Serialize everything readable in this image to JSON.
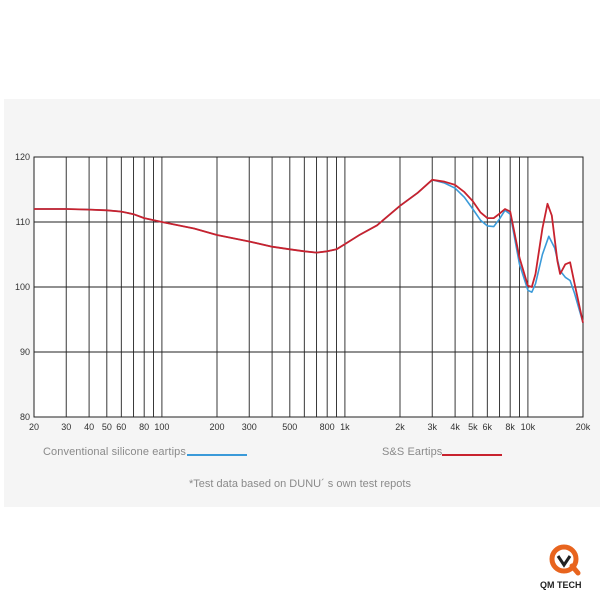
{
  "chart_data": {
    "type": "line",
    "x_scale": "log",
    "xlim": [
      20,
      20000
    ],
    "ylim": [
      80,
      120
    ],
    "grid": true,
    "x_tick_labels": [
      {
        "v": 20,
        "label": "20"
      },
      {
        "v": 30,
        "label": "30"
      },
      {
        "v": 40,
        "label": "40"
      },
      {
        "v": 50,
        "label": "50"
      },
      {
        "v": 60,
        "label": "60"
      },
      {
        "v": 80,
        "label": "80"
      },
      {
        "v": 100,
        "label": "100"
      },
      {
        "v": 200,
        "label": "200"
      },
      {
        "v": 300,
        "label": "300"
      },
      {
        "v": 500,
        "label": "500"
      },
      {
        "v": 800,
        "label": "800"
      },
      {
        "v": 1000,
        "label": "1k"
      },
      {
        "v": 2000,
        "label": "2k"
      },
      {
        "v": 3000,
        "label": "3k"
      },
      {
        "v": 4000,
        "label": "4k"
      },
      {
        "v": 5000,
        "label": "5k"
      },
      {
        "v": 6000,
        "label": "6k"
      },
      {
        "v": 8000,
        "label": "8k"
      },
      {
        "v": 10000,
        "label": "10k"
      },
      {
        "v": 20000,
        "label": "20k"
      }
    ],
    "x_gridlines": [
      20,
      30,
      40,
      50,
      60,
      70,
      80,
      90,
      100,
      200,
      300,
      400,
      500,
      600,
      700,
      800,
      900,
      1000,
      2000,
      3000,
      4000,
      5000,
      6000,
      7000,
      8000,
      9000,
      10000,
      20000
    ],
    "y_ticks": [
      80,
      90,
      100,
      110,
      120
    ],
    "legend_placement": "bottom",
    "series": [
      {
        "name": "Conventional silicone eartips",
        "color": "#3a9ad9",
        "points": [
          [
            20,
            112
          ],
          [
            30,
            112
          ],
          [
            40,
            111.9
          ],
          [
            50,
            111.8
          ],
          [
            60,
            111.6
          ],
          [
            70,
            111.2
          ],
          [
            80,
            110.6
          ],
          [
            100,
            110
          ],
          [
            150,
            109
          ],
          [
            200,
            108
          ],
          [
            300,
            107
          ],
          [
            400,
            106.2
          ],
          [
            500,
            105.8
          ],
          [
            600,
            105.5
          ],
          [
            700,
            105.3
          ],
          [
            800,
            105.5
          ],
          [
            900,
            105.8
          ],
          [
            1000,
            106.6
          ],
          [
            1200,
            108
          ],
          [
            1500,
            109.5
          ],
          [
            2000,
            112.5
          ],
          [
            2500,
            114.5
          ],
          [
            3000,
            116.5
          ],
          [
            3500,
            116
          ],
          [
            4000,
            115.2
          ],
          [
            4500,
            113.8
          ],
          [
            5000,
            112
          ],
          [
            5500,
            110.3
          ],
          [
            6000,
            109.4
          ],
          [
            6500,
            109.3
          ],
          [
            7000,
            110.5
          ],
          [
            7500,
            111.8
          ],
          [
            8000,
            111.2
          ],
          [
            9000,
            103.5
          ],
          [
            10000,
            99.5
          ],
          [
            10500,
            99.2
          ],
          [
            11000,
            100.5
          ],
          [
            12000,
            105
          ],
          [
            13000,
            107.8
          ],
          [
            14000,
            106
          ],
          [
            15000,
            102.5
          ],
          [
            16000,
            101.5
          ],
          [
            17000,
            101
          ],
          [
            18000,
            99
          ],
          [
            20000,
            94.5
          ]
        ]
      },
      {
        "name": "S&S Eartips",
        "color": "#c8222e",
        "points": [
          [
            20,
            112
          ],
          [
            30,
            112
          ],
          [
            40,
            111.9
          ],
          [
            50,
            111.8
          ],
          [
            60,
            111.6
          ],
          [
            70,
            111.2
          ],
          [
            80,
            110.6
          ],
          [
            100,
            110
          ],
          [
            150,
            109
          ],
          [
            200,
            108
          ],
          [
            300,
            107
          ],
          [
            400,
            106.2
          ],
          [
            500,
            105.8
          ],
          [
            600,
            105.5
          ],
          [
            700,
            105.3
          ],
          [
            800,
            105.5
          ],
          [
            900,
            105.8
          ],
          [
            1000,
            106.6
          ],
          [
            1200,
            108
          ],
          [
            1500,
            109.5
          ],
          [
            2000,
            112.5
          ],
          [
            2500,
            114.5
          ],
          [
            3000,
            116.5
          ],
          [
            3500,
            116.2
          ],
          [
            4000,
            115.7
          ],
          [
            4500,
            114.6
          ],
          [
            5000,
            113.2
          ],
          [
            5500,
            111.5
          ],
          [
            6000,
            110.6
          ],
          [
            6500,
            110.6
          ],
          [
            7000,
            111.3
          ],
          [
            7500,
            112
          ],
          [
            8000,
            111.6
          ],
          [
            9000,
            104.5
          ],
          [
            10000,
            100.2
          ],
          [
            10500,
            100
          ],
          [
            11000,
            102
          ],
          [
            12000,
            109
          ],
          [
            12800,
            112.8
          ],
          [
            13500,
            111
          ],
          [
            14500,
            104
          ],
          [
            15000,
            102
          ],
          [
            16000,
            103.5
          ],
          [
            17000,
            103.8
          ],
          [
            18000,
            100.5
          ],
          [
            20000,
            94.5
          ]
        ]
      }
    ]
  },
  "legend": {
    "series1_label": "Conventional silicone eartips",
    "series2_label": "S&S Eartips"
  },
  "footnote": "*Test data based on DUNU´ s own test repots",
  "watermark": {
    "text": "QM TECH",
    "accent_color": "#e8641e"
  }
}
